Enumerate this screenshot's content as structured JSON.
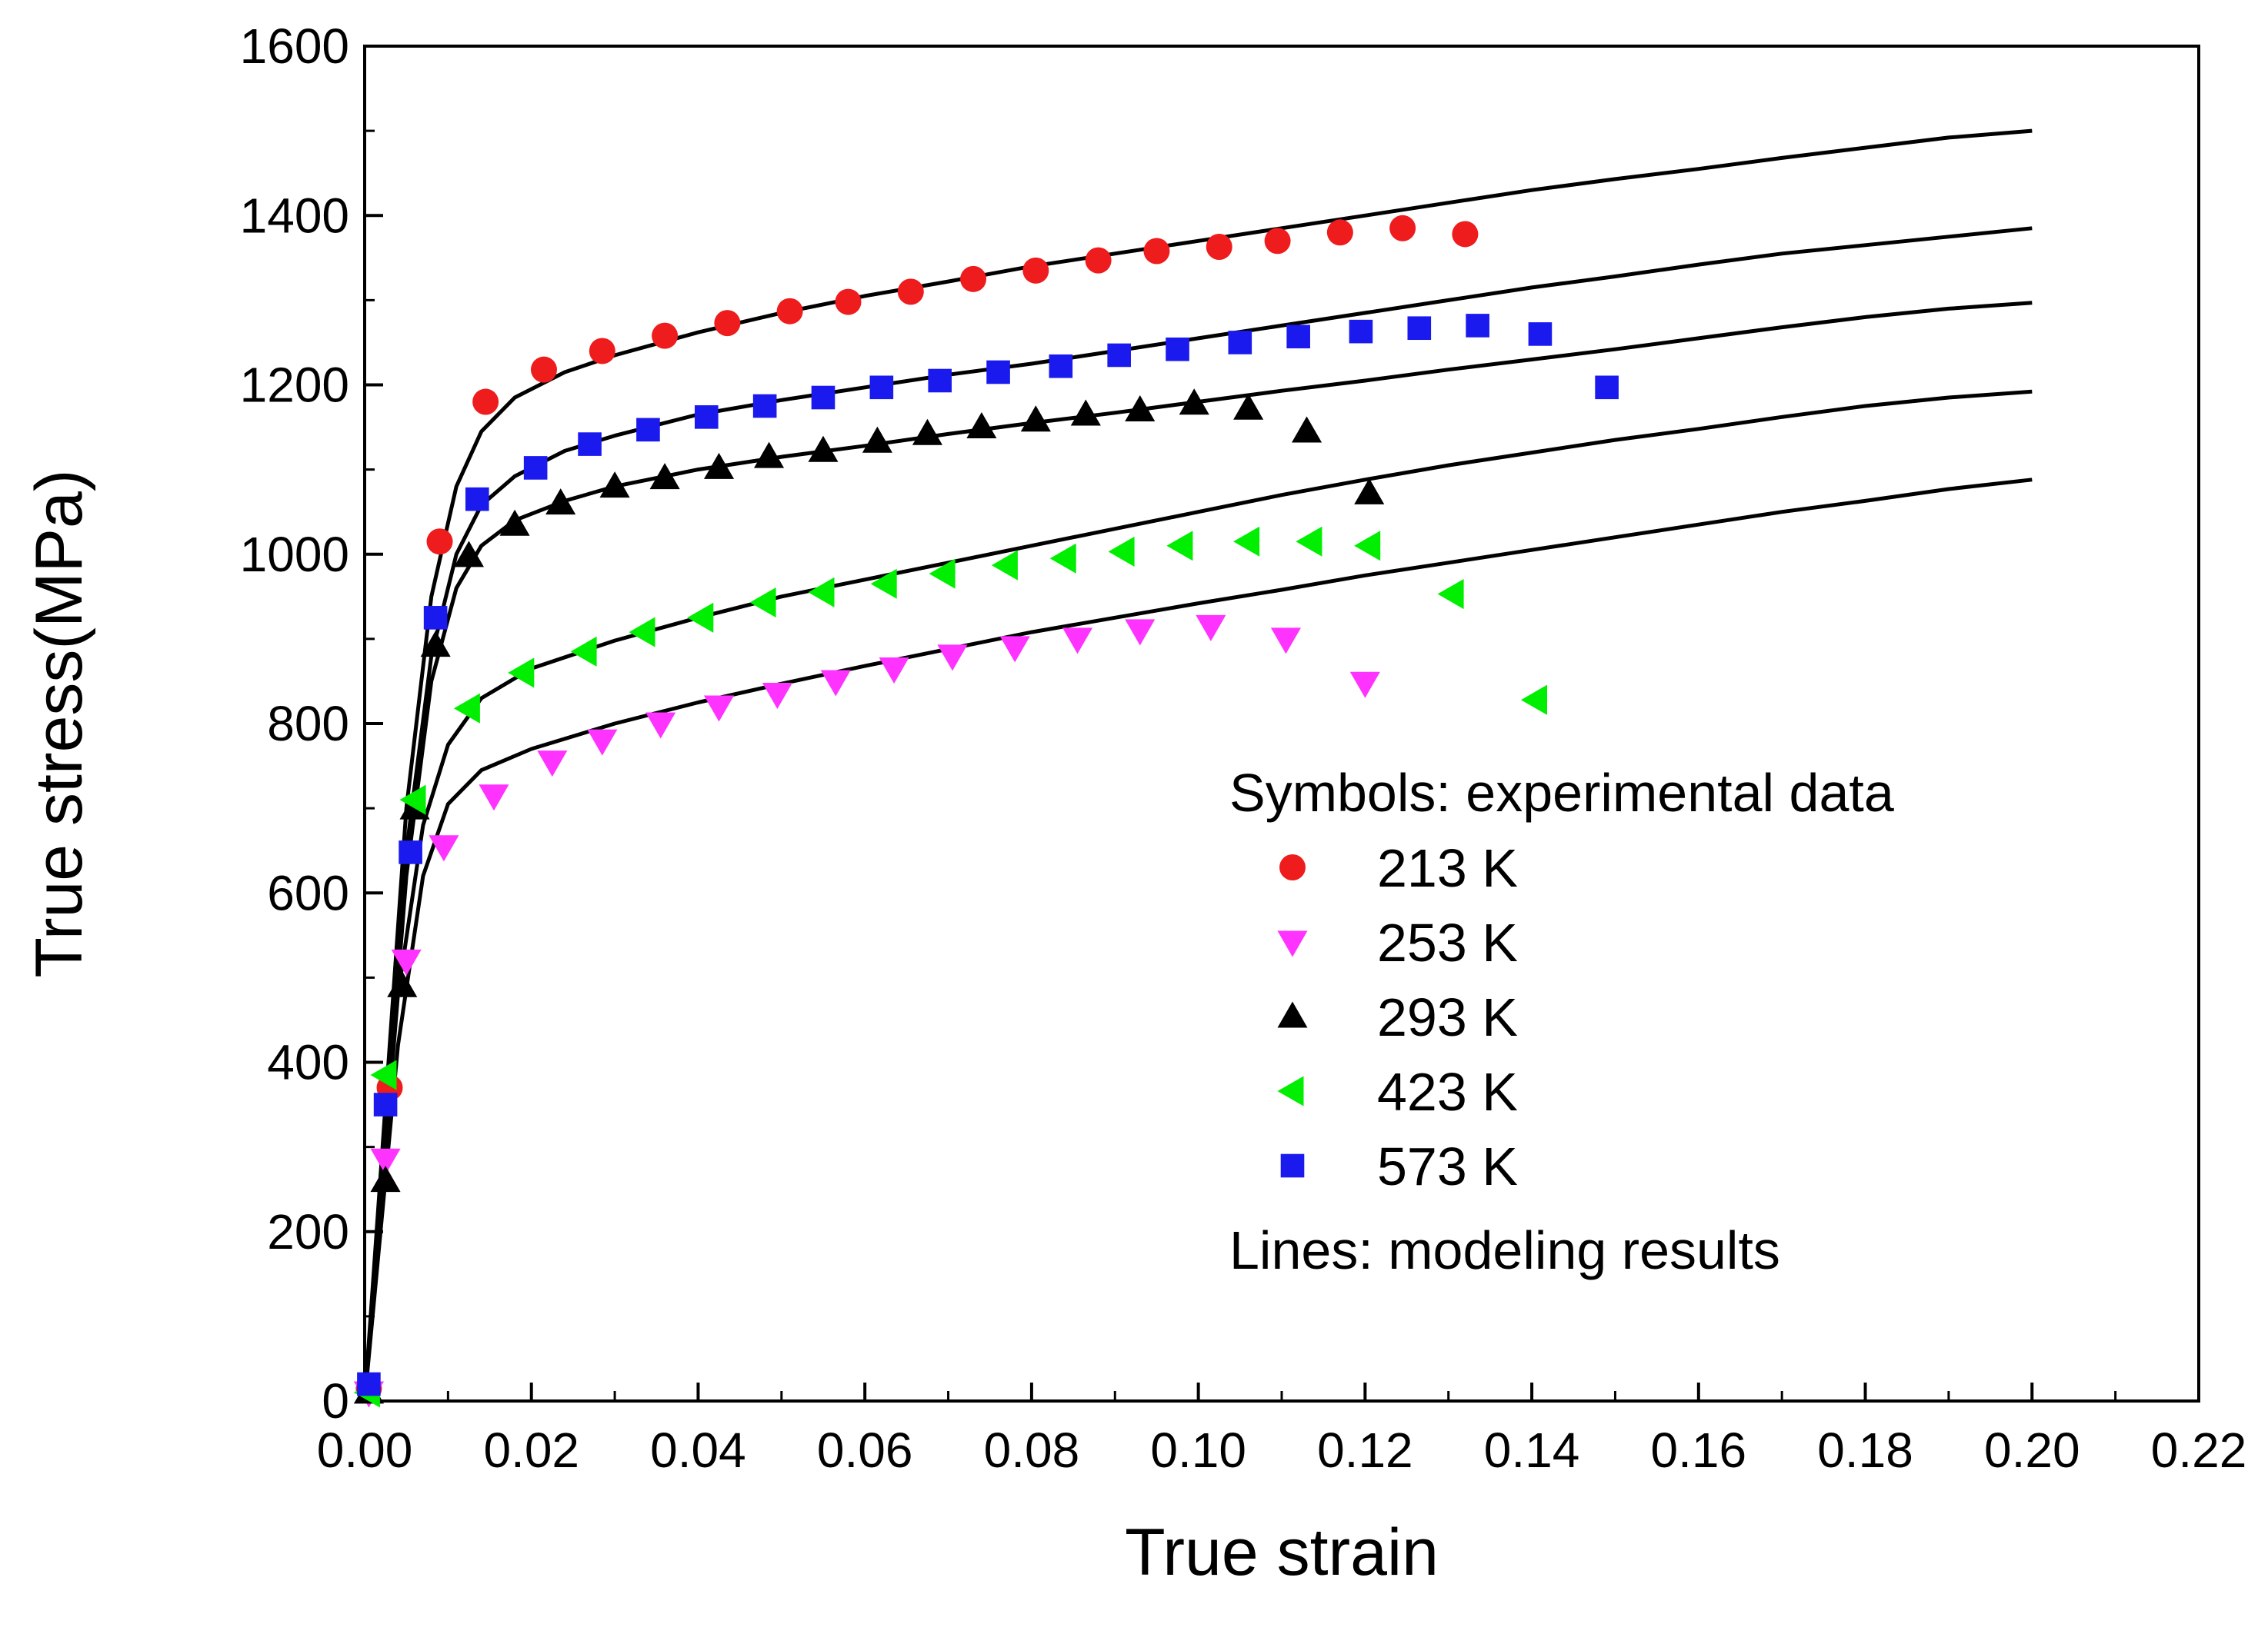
{
  "chart_data": {
    "type": "scatter",
    "title": "",
    "xlabel": "True strain",
    "ylabel": "True stress(MPa)",
    "xlim": [
      0.0,
      0.22
    ],
    "ylim": [
      0,
      1600
    ],
    "x_ticks": [
      "0.00",
      "0.02",
      "0.04",
      "0.06",
      "0.08",
      "0.10",
      "0.12",
      "0.14",
      "0.16",
      "0.18",
      "0.20",
      "0.22"
    ],
    "y_ticks": [
      "0",
      "200",
      "400",
      "600",
      "800",
      "1000",
      "1200",
      "1400",
      "1600"
    ],
    "grid": false,
    "legend_position": "right",
    "legend": {
      "symbols_heading": "Symbols: experimental data",
      "lines_heading": "Lines: modeling results"
    },
    "series": [
      {
        "name": "213 K",
        "marker": "circle",
        "color": "#ee1c1c",
        "x": [
          0.0005,
          0.003,
          0.009,
          0.0145,
          0.0215,
          0.0285,
          0.036,
          0.0435,
          0.051,
          0.058,
          0.0655,
          0.073,
          0.0805,
          0.088,
          0.095,
          0.1025,
          0.1095,
          0.117,
          0.1245,
          0.132
        ],
        "y": [
          15,
          370,
          1015,
          1180,
          1218,
          1240,
          1258,
          1273,
          1287,
          1298,
          1310,
          1325,
          1335,
          1347,
          1358,
          1363,
          1370,
          1380,
          1385,
          1378
        ]
      },
      {
        "name": "253 K",
        "marker": "triangle-down",
        "color": "#ff33ff",
        "x": [
          0.0005,
          0.0025,
          0.005,
          0.0095,
          0.0155,
          0.0225,
          0.0285,
          0.0355,
          0.0425,
          0.0495,
          0.0565,
          0.0635,
          0.0705,
          0.078,
          0.0855,
          0.093,
          0.1015,
          0.1105,
          0.12
        ],
        "y": [
          10,
          285,
          520,
          655,
          715,
          755,
          780,
          800,
          820,
          835,
          850,
          865,
          880,
          890,
          900,
          910,
          915,
          900,
          848
        ]
      },
      {
        "name": "293 K",
        "marker": "triangle-up",
        "color": "#000000",
        "x": [
          0.0005,
          0.0025,
          0.0045,
          0.006,
          0.0085,
          0.0125,
          0.018,
          0.0235,
          0.03,
          0.036,
          0.0425,
          0.0485,
          0.055,
          0.0615,
          0.0675,
          0.074,
          0.0805,
          0.0865,
          0.093,
          0.0995,
          0.106,
          0.113,
          0.1205
        ],
        "y": [
          10,
          260,
          490,
          700,
          892,
          998,
          1035,
          1060,
          1080,
          1090,
          1102,
          1115,
          1122,
          1133,
          1142,
          1150,
          1158,
          1165,
          1170,
          1178,
          1172,
          1145,
          1072
        ]
      },
      {
        "name": "423 K",
        "marker": "triangle-left",
        "color": "#00ee00",
        "x": [
          0.0005,
          0.0025,
          0.006,
          0.0125,
          0.019,
          0.0265,
          0.0335,
          0.0405,
          0.048,
          0.055,
          0.0625,
          0.0695,
          0.077,
          0.084,
          0.091,
          0.098,
          0.106,
          0.1135,
          0.1205,
          0.1305,
          0.1405
        ],
        "y": [
          10,
          385,
          710,
          818,
          860,
          885,
          908,
          925,
          943,
          955,
          965,
          977,
          987,
          995,
          1003,
          1010,
          1015,
          1015,
          1010,
          953,
          828
        ]
      },
      {
        "name": "573 K",
        "marker": "square",
        "color": "#1a1aee",
        "x": [
          0.0005,
          0.0025,
          0.0055,
          0.0085,
          0.0135,
          0.0205,
          0.027,
          0.034,
          0.041,
          0.048,
          0.055,
          0.062,
          0.069,
          0.076,
          0.0835,
          0.0905,
          0.0975,
          0.105,
          0.112,
          0.1195,
          0.1265,
          0.1335,
          0.141,
          0.149
        ],
        "y": [
          20,
          350,
          648,
          925,
          1065,
          1102,
          1130,
          1147,
          1162,
          1175,
          1185,
          1197,
          1205,
          1215,
          1222,
          1235,
          1242,
          1250,
          1257,
          1263,
          1267,
          1270,
          1260,
          1197
        ]
      }
    ],
    "model_lines": [
      {
        "name": "213 K",
        "x": [
          0,
          0.005,
          0.008,
          0.011,
          0.014,
          0.018,
          0.024,
          0.03,
          0.04,
          0.05,
          0.06,
          0.07,
          0.08,
          0.09,
          0.1,
          0.11,
          0.12,
          0.13,
          0.14,
          0.15,
          0.16,
          0.17,
          0.18,
          0.19,
          0.2
        ],
        "y": [
          0,
          700,
          950,
          1080,
          1145,
          1185,
          1215,
          1235,
          1262,
          1285,
          1305,
          1322,
          1340,
          1355,
          1370,
          1385,
          1400,
          1415,
          1430,
          1443,
          1455,
          1468,
          1480,
          1492,
          1500
        ]
      },
      {
        "name": "573 K",
        "x": [
          0,
          0.005,
          0.008,
          0.011,
          0.014,
          0.018,
          0.024,
          0.03,
          0.04,
          0.05,
          0.06,
          0.07,
          0.08,
          0.09,
          0.1,
          0.11,
          0.12,
          0.13,
          0.14,
          0.15,
          0.16,
          0.17,
          0.18,
          0.19,
          0.2
        ],
        "y": [
          0,
          650,
          880,
          1000,
          1058,
          1092,
          1122,
          1140,
          1165,
          1182,
          1197,
          1212,
          1225,
          1240,
          1255,
          1270,
          1285,
          1300,
          1315,
          1328,
          1342,
          1355,
          1365,
          1375,
          1385
        ]
      },
      {
        "name": "293 K",
        "x": [
          0,
          0.005,
          0.008,
          0.011,
          0.014,
          0.018,
          0.024,
          0.03,
          0.04,
          0.05,
          0.06,
          0.07,
          0.08,
          0.09,
          0.1,
          0.11,
          0.12,
          0.13,
          0.14,
          0.15,
          0.16,
          0.17,
          0.18,
          0.19,
          0.2
        ],
        "y": [
          0,
          620,
          850,
          960,
          1010,
          1040,
          1063,
          1080,
          1100,
          1115,
          1128,
          1142,
          1155,
          1167,
          1180,
          1193,
          1205,
          1218,
          1230,
          1242,
          1255,
          1268,
          1280,
          1290,
          1297
        ]
      },
      {
        "name": "423 K",
        "x": [
          0,
          0.004,
          0.007,
          0.01,
          0.014,
          0.02,
          0.03,
          0.04,
          0.05,
          0.06,
          0.07,
          0.08,
          0.09,
          0.1,
          0.11,
          0.12,
          0.13,
          0.14,
          0.15,
          0.16,
          0.17,
          0.18,
          0.19,
          0.2
        ],
        "y": [
          0,
          480,
          680,
          775,
          830,
          865,
          898,
          925,
          950,
          970,
          990,
          1010,
          1030,
          1050,
          1070,
          1088,
          1105,
          1120,
          1135,
          1148,
          1162,
          1175,
          1185,
          1192
        ]
      },
      {
        "name": "253 K",
        "x": [
          0,
          0.004,
          0.007,
          0.01,
          0.014,
          0.02,
          0.03,
          0.04,
          0.05,
          0.06,
          0.07,
          0.08,
          0.09,
          0.1,
          0.11,
          0.12,
          0.13,
          0.14,
          0.15,
          0.16,
          0.17,
          0.18,
          0.19,
          0.2
        ],
        "y": [
          0,
          420,
          620,
          705,
          745,
          770,
          800,
          825,
          847,
          868,
          888,
          908,
          925,
          942,
          958,
          975,
          990,
          1005,
          1020,
          1035,
          1050,
          1063,
          1077,
          1088
        ]
      }
    ]
  }
}
